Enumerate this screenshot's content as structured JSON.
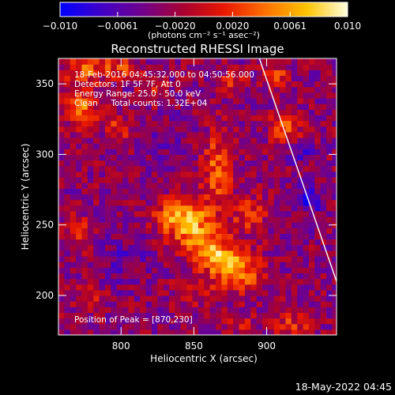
{
  "chart_data": {
    "type": "heatmap",
    "title": "Reconstructed RHESSI Image",
    "xlabel": "Heliocentric X (arcsec)",
    "ylabel": "Heliocentric Y (arcsec)",
    "xlim": [
      757,
      948
    ],
    "ylim": [
      172,
      368
    ],
    "x_ticks": [
      800,
      850,
      900
    ],
    "y_ticks": [
      200,
      250,
      300,
      350
    ],
    "colorbar": {
      "min": -0.01,
      "max": 0.01,
      "tick_labels": [
        "-0.010",
        "-0.0061",
        "-0.0020",
        "0.0020",
        "0.0061",
        "0.010"
      ],
      "unit_label": "(photons cm⁻² s⁻¹ asec⁻²)",
      "colormap": [
        "#0000ff",
        "#4000c8",
        "#70008c",
        "#a80030",
        "#e81800",
        "#ff7000",
        "#ffc400",
        "#ffffe0"
      ]
    },
    "info_lines": [
      "18-Feb-2016 04:45:32.000 to 04:50:56.000",
      "Detectors: 1F 5F 7F, Att 0",
      "Energy Range: 25.0 - 50.0 keV",
      "Clean     Total counts: 1.32E+04"
    ],
    "peak_label": "Position of Peak = [870,230]",
    "peak": [
      870,
      230
    ],
    "limb_line": [
      [
        895,
        368
      ],
      [
        948,
        210
      ]
    ],
    "sources": [
      {
        "x": 862,
        "y": 232,
        "sx": 20,
        "sy": 9,
        "angle": -40,
        "amp": 0.0098
      },
      {
        "x": 843,
        "y": 258,
        "sx": 14,
        "sy": 10,
        "angle": 0,
        "amp": 0.0078
      },
      {
        "x": 866,
        "y": 290,
        "sx": 7,
        "sy": 17,
        "angle": 0,
        "amp": 0.0062
      },
      {
        "x": 888,
        "y": 258,
        "sx": 9,
        "sy": 9,
        "angle": 0,
        "amp": 0.0046
      },
      {
        "x": 885,
        "y": 220,
        "sx": 11,
        "sy": 10,
        "angle": 0,
        "amp": 0.004
      },
      {
        "x": 855,
        "y": 205,
        "sx": 12,
        "sy": 8,
        "angle": 0,
        "amp": 0.003
      },
      {
        "x": 773,
        "y": 333,
        "sx": 8,
        "sy": 10,
        "angle": 0,
        "amp": 0.0072
      },
      {
        "x": 775,
        "y": 360,
        "sx": 10,
        "sy": 6,
        "angle": 0,
        "amp": 0.006
      },
      {
        "x": 800,
        "y": 362,
        "sx": 9,
        "sy": 6,
        "angle": 0,
        "amp": 0.005
      },
      {
        "x": 798,
        "y": 318,
        "sx": 6,
        "sy": 6,
        "angle": 0,
        "amp": 0.0048
      },
      {
        "x": 822,
        "y": 346,
        "sx": 6,
        "sy": 6,
        "angle": 0,
        "amp": 0.0042
      },
      {
        "x": 876,
        "y": 352,
        "sx": 6,
        "sy": 6,
        "angle": 0,
        "amp": 0.004
      },
      {
        "x": 913,
        "y": 320,
        "sx": 7,
        "sy": 8,
        "angle": 0,
        "amp": 0.0068
      },
      {
        "x": 906,
        "y": 357,
        "sx": 6,
        "sy": 6,
        "angle": 0,
        "amp": 0.005
      },
      {
        "x": 772,
        "y": 243,
        "sx": 7,
        "sy": 9,
        "angle": 0,
        "amp": 0.0042
      },
      {
        "x": 778,
        "y": 200,
        "sx": 8,
        "sy": 6,
        "angle": 0,
        "amp": 0.003
      },
      {
        "x": 918,
        "y": 180,
        "sx": 10,
        "sy": 7,
        "angle": 0,
        "amp": 0.004
      },
      {
        "x": 880,
        "y": 180,
        "sx": 9,
        "sy": 6,
        "angle": 0,
        "amp": 0.0032
      },
      {
        "x": 930,
        "y": 268,
        "sx": 7,
        "sy": 8,
        "angle": 0,
        "amp": -0.0042
      },
      {
        "x": 922,
        "y": 302,
        "sx": 6,
        "sy": 5,
        "angle": 0,
        "amp": -0.0035
      },
      {
        "x": 800,
        "y": 230,
        "sx": 12,
        "sy": 14,
        "angle": 0,
        "amp": -0.002
      },
      {
        "x": 832,
        "y": 310,
        "sx": 9,
        "sy": 10,
        "angle": 0,
        "amp": -0.0018
      },
      {
        "x": 820,
        "y": 275,
        "sx": 8,
        "sy": 8,
        "angle": 0,
        "amp": -0.0014
      }
    ]
  },
  "footer": {
    "date": "18-May-2022 04:45"
  }
}
